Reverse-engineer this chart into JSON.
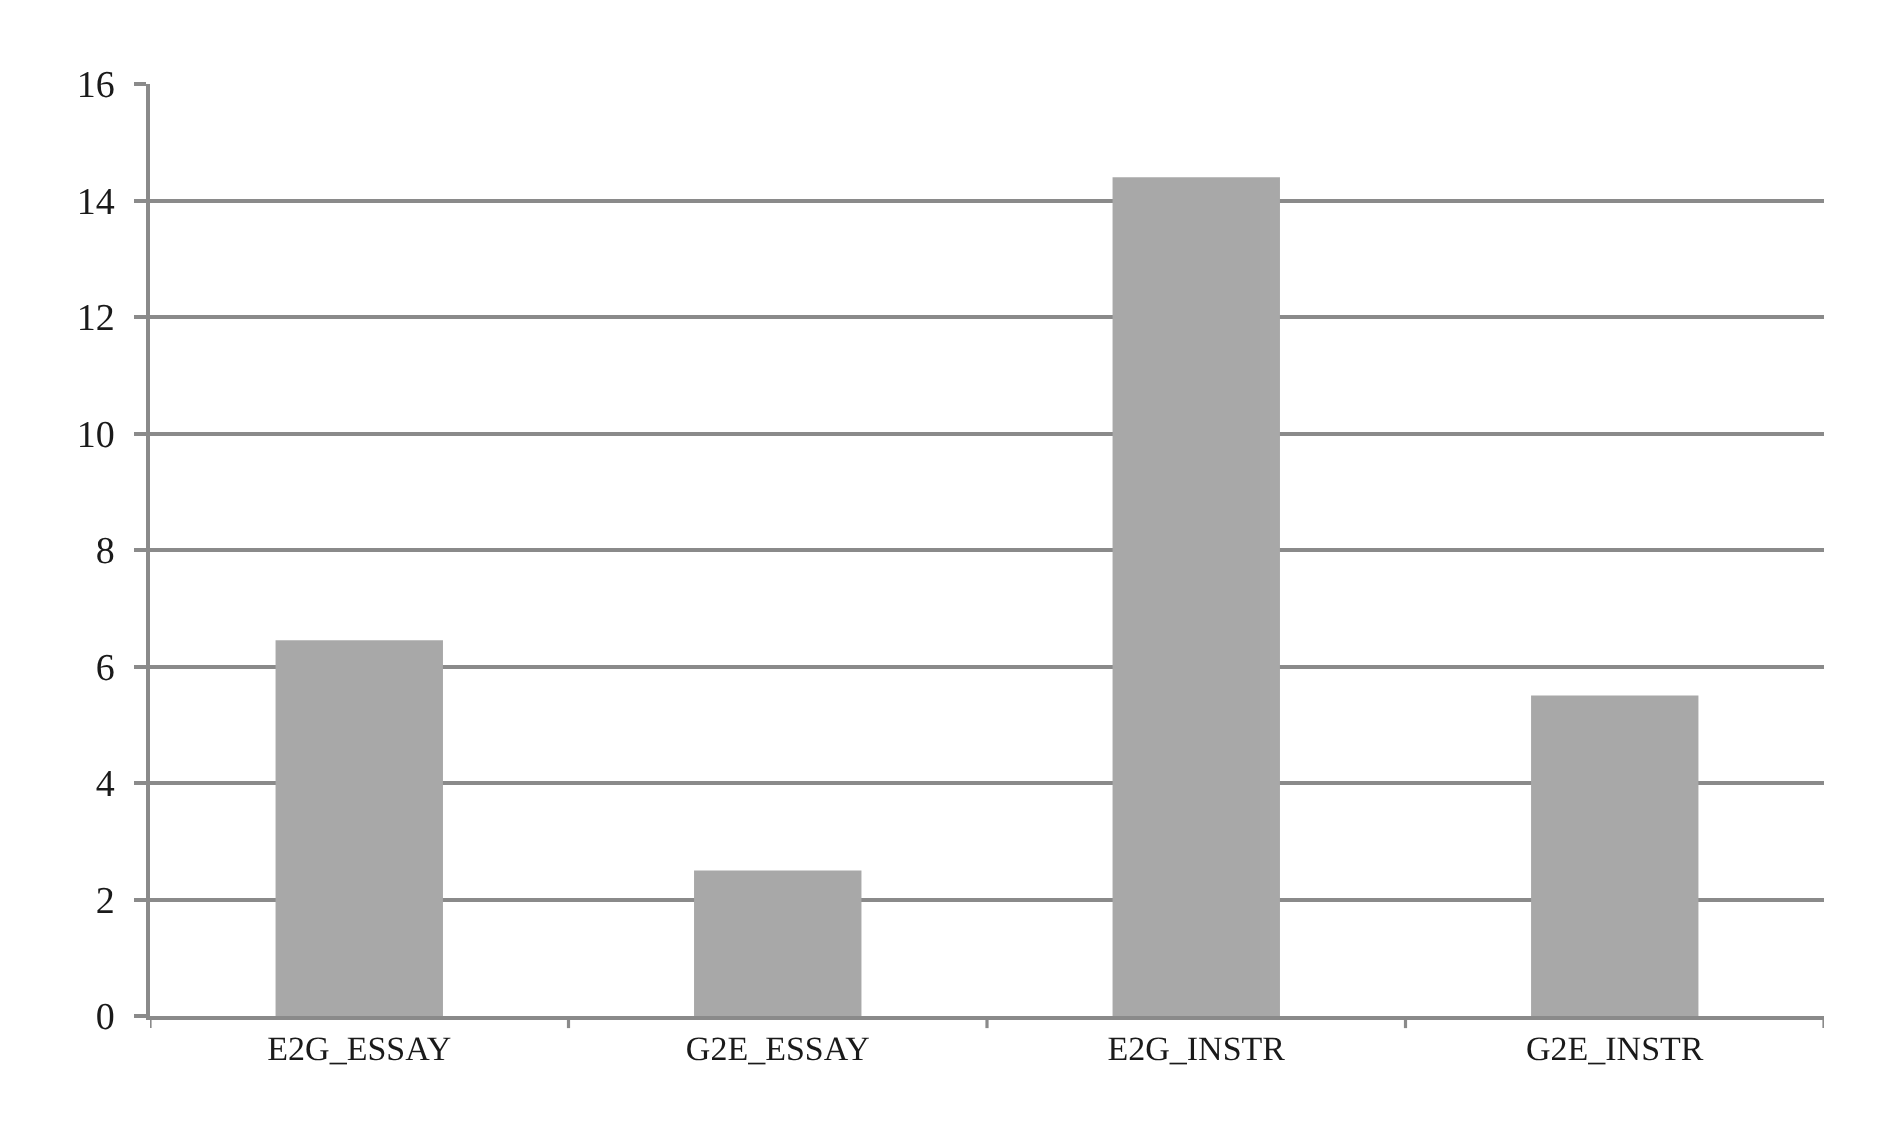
{
  "chart_data": {
    "type": "bar",
    "categories": [
      "E2G_ESSAY",
      "G2E_ESSAY",
      "E2G_INSTR",
      "G2E_INSTR"
    ],
    "values": [
      6.45,
      2.5,
      14.4,
      5.5
    ],
    "color": "#a8a8a8",
    "ylim": [
      0,
      16
    ],
    "yticks": [
      0,
      2,
      4,
      6,
      8,
      10,
      12,
      14,
      16
    ],
    "grid": "y"
  }
}
